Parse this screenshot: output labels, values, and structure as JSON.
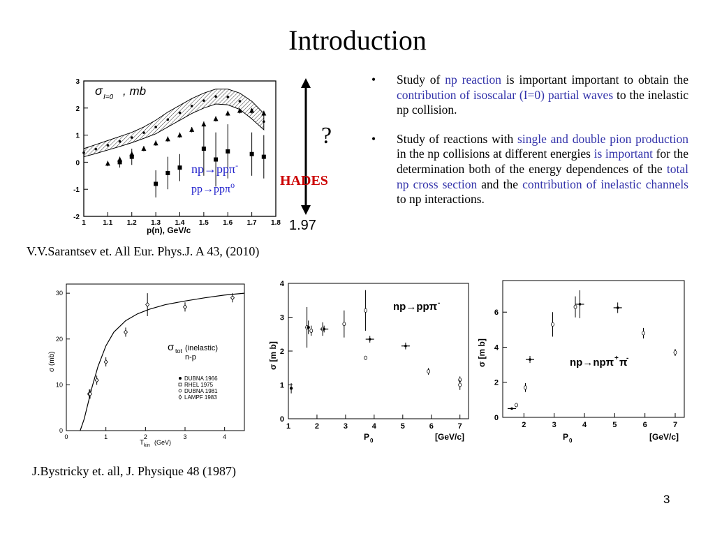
{
  "slide": {
    "title": "Introduction",
    "page_number": "3",
    "refs": {
      "sarantsev": "V.V.Sarantsev et. All Eur. Phys.J. A 43, (2010)",
      "bystricky": "J.Bystricky et. all, J. Physique 48 (1987)"
    },
    "highlight_color": "#3333aa",
    "hades_color": "#cc0000"
  },
  "bullets": [
    {
      "marker": "•",
      "parts": [
        {
          "t": "Study of ",
          "hl": false
        },
        {
          "t": "np reaction",
          "hl": true
        },
        {
          "t": " is important important to obtain the ",
          "hl": false
        },
        {
          "t": "contribution of isoscalar (I=0) partial waves",
          "hl": true
        },
        {
          "t": " to the inelastic np collision.",
          "hl": false
        }
      ]
    },
    {
      "marker": "•",
      "parts": [
        {
          "t": "Study of reactions with ",
          "hl": false
        },
        {
          "t": "single and double pion production",
          "hl": true
        },
        {
          "t": " in the np collisions at different energies ",
          "hl": false
        },
        {
          "t": "is important",
          "hl": true
        },
        {
          "t": " for the determination both of the energy dependences of the ",
          "hl": false
        },
        {
          "t": "total np cross section",
          "hl": true
        },
        {
          "t": " and the ",
          "hl": false
        },
        {
          "t": "contribution of inelastic channels",
          "hl": true
        },
        {
          "t": " to np interactions.",
          "hl": false
        }
      ]
    }
  ],
  "annotations": {
    "question": "?",
    "hades": "HADES",
    "energy_mark": "1.97"
  },
  "chart_data": [
    {
      "type": "scatter",
      "id": "sigma_I0",
      "title_main": "σ",
      "title_sub": "I=0",
      "title_unit": ", mb",
      "xlabel": "p(n), GeV/c",
      "ylabel": "",
      "xlim": [
        1.0,
        1.8
      ],
      "ylim": [
        -2,
        3
      ],
      "xticks": [
        "1",
        "1.1",
        "1.2",
        "1.3",
        "1.4",
        "1.5",
        "1.6",
        "1.7",
        "1.8"
      ],
      "yticks": [
        "-2",
        "-1",
        "0",
        "1",
        "2",
        "3"
      ],
      "legend": [
        "np→ppπ-",
        "pp→ppπ0"
      ],
      "band": {
        "x": [
          1.0,
          1.05,
          1.1,
          1.15,
          1.2,
          1.25,
          1.3,
          1.35,
          1.4,
          1.45,
          1.5,
          1.55,
          1.6,
          1.65,
          1.7,
          1.75
        ],
        "upper": [
          0.5,
          0.65,
          0.8,
          0.95,
          1.1,
          1.3,
          1.55,
          1.85,
          2.1,
          2.35,
          2.55,
          2.7,
          2.7,
          2.55,
          2.25,
          1.8
        ],
        "lower": [
          0.2,
          0.32,
          0.45,
          0.58,
          0.72,
          0.88,
          1.05,
          1.3,
          1.55,
          1.8,
          2.0,
          2.15,
          2.12,
          1.95,
          1.6,
          1.2
        ]
      },
      "series": [
        {
          "name": "np→ppπ-",
          "marker": "square",
          "x": [
            1.15,
            1.2,
            1.3,
            1.35,
            1.4,
            1.5,
            1.55,
            1.6,
            1.7,
            1.75
          ],
          "y": [
            0.0,
            0.2,
            -0.8,
            -0.4,
            -0.2,
            0.5,
            0.1,
            0.4,
            0.3,
            0.2
          ],
          "err": [
            0.2,
            0.3,
            0.5,
            0.6,
            0.5,
            1.0,
            1.0,
            1.0,
            0.8,
            0.8
          ]
        },
        {
          "name": "pp→ppπ0",
          "marker": "triangle",
          "x": [
            1.1,
            1.15,
            1.2,
            1.25,
            1.3,
            1.35,
            1.4,
            1.45,
            1.5,
            1.55,
            1.6,
            1.65,
            1.7,
            1.75
          ],
          "y": [
            -0.05,
            0.1,
            0.3,
            0.5,
            0.7,
            0.85,
            1.0,
            1.2,
            1.4,
            1.6,
            1.8,
            1.9,
            1.9,
            1.8
          ],
          "err": [
            0.1,
            0.1,
            0.1,
            0.1,
            0.1,
            0.1,
            0.1,
            0.1,
            0.1,
            0.1,
            0.1,
            0.1,
            0.1,
            0.1
          ]
        }
      ]
    },
    {
      "type": "scatter",
      "id": "bystricky",
      "title_main": "σ",
      "title_sub": "tot",
      "title_rest": "(inelastic)",
      "title_line2": "n-p",
      "xlabel": "T",
      "xlabel_sub": "kin",
      "xlabel_unit": "(GeV)",
      "ylabel": "σ (mb)",
      "xlim": [
        0,
        4.5
      ],
      "ylim": [
        0,
        32
      ],
      "xticks": [
        "0",
        "1",
        "2",
        "3",
        "4"
      ],
      "yticks": [
        "0",
        "10",
        "20",
        "30"
      ],
      "legend": [
        {
          "marker": "filled-circle",
          "label": "DUBNA 1966"
        },
        {
          "marker": "open-square",
          "label": "RHEL 1975"
        },
        {
          "marker": "open-circle",
          "label": "DUBNA 1981"
        },
        {
          "marker": "open-diamond",
          "label": "LAMPF 1983"
        }
      ],
      "curve": {
        "x": [
          0.35,
          0.45,
          0.55,
          0.65,
          0.8,
          1.0,
          1.2,
          1.5,
          1.8,
          2.1,
          2.5,
          3.0,
          3.5,
          4.0,
          4.5
        ],
        "y": [
          0.0,
          2.5,
          6.0,
          9.5,
          14.0,
          18.5,
          21.5,
          24.0,
          25.5,
          26.5,
          27.5,
          28.3,
          29.0,
          29.6,
          30.0
        ]
      },
      "points": {
        "x": [
          0.58,
          0.6,
          0.77,
          1.0,
          1.5,
          2.05,
          3.0,
          4.2
        ],
        "y": [
          8.0,
          8.0,
          11.0,
          15.0,
          21.5,
          27.5,
          27.0,
          29.0
        ],
        "err": [
          1.0,
          1.0,
          1.0,
          1.0,
          1.0,
          2.5,
          1.0,
          1.0
        ]
      }
    },
    {
      "type": "scatter",
      "id": "np_pppim",
      "label": "np→ppπ",
      "label_sup": "-",
      "xlabel": "P",
      "xlabel_sub": "0",
      "xlabel_unit": "[GeV/c]",
      "ylabel": "σ [m b]",
      "xlim": [
        1,
        7.3
      ],
      "ylim": [
        0,
        4
      ],
      "xticks": [
        "1",
        "2",
        "3",
        "4",
        "5",
        "6",
        "7"
      ],
      "yticks": [
        "0",
        "1",
        "2",
        "3",
        "4"
      ],
      "points": [
        {
          "x": 1.1,
          "y": 0.9,
          "err": 0.15,
          "m": "filled"
        },
        {
          "x": 1.65,
          "y": 2.7,
          "err": 0.6,
          "m": "open"
        },
        {
          "x": 1.7,
          "y": 2.7,
          "err": 0.2,
          "m": "filled"
        },
        {
          "x": 1.8,
          "y": 2.6,
          "err": 0.15,
          "m": "open"
        },
        {
          "x": 2.2,
          "y": 2.65,
          "err": 0.2,
          "m": "open"
        },
        {
          "x": 2.25,
          "y": 2.65,
          "err": 0.1,
          "m": "cross"
        },
        {
          "x": 2.95,
          "y": 2.8,
          "err": 0.4,
          "m": "open"
        },
        {
          "x": 3.7,
          "y": 3.2,
          "err": 0.6,
          "m": "open"
        },
        {
          "x": 3.7,
          "y": 1.8,
          "err": 0.0,
          "m": "open"
        },
        {
          "x": 3.85,
          "y": 2.35,
          "err": 0.1,
          "m": "cross"
        },
        {
          "x": 5.1,
          "y": 2.15,
          "err": 0.1,
          "m": "cross"
        },
        {
          "x": 5.9,
          "y": 1.4,
          "err": 0.1,
          "m": "open"
        },
        {
          "x": 7.0,
          "y": 1.15,
          "err": 0.1,
          "m": "open"
        },
        {
          "x": 7.0,
          "y": 1.0,
          "err": 0.15,
          "m": "open"
        }
      ]
    },
    {
      "type": "scatter",
      "id": "np_nppippim",
      "label": "np→npπ",
      "label_sup1": "+",
      "label_mid": "π",
      "label_sup2": "-",
      "xlabel": "P",
      "xlabel_sub": "0",
      "xlabel_unit": "[GeV/c]",
      "ylabel": "σ [m b]",
      "xlim": [
        1.3,
        7.3
      ],
      "ylim": [
        0,
        7.8
      ],
      "xticks": [
        "2",
        "3",
        "4",
        "5",
        "6",
        "7"
      ],
      "yticks": [
        "0",
        "2",
        "4",
        "6"
      ],
      "points": [
        {
          "x": 1.6,
          "y": 0.5,
          "err": 0.0,
          "m": "cross"
        },
        {
          "x": 1.75,
          "y": 0.7,
          "err": 0.0,
          "m": "open"
        },
        {
          "x": 2.05,
          "y": 1.7,
          "err": 0.25,
          "m": "open"
        },
        {
          "x": 2.2,
          "y": 3.3,
          "err": 0.2,
          "m": "cross"
        },
        {
          "x": 2.95,
          "y": 5.3,
          "err": 0.7,
          "m": "open"
        },
        {
          "x": 3.7,
          "y": 6.3,
          "err": 0.6,
          "m": "open"
        },
        {
          "x": 3.85,
          "y": 6.45,
          "err": 0.8,
          "m": "cross"
        },
        {
          "x": 5.1,
          "y": 6.25,
          "err": 0.3,
          "m": "cross"
        },
        {
          "x": 5.95,
          "y": 4.8,
          "err": 0.3,
          "m": "open"
        },
        {
          "x": 7.0,
          "y": 3.7,
          "err": 0.2,
          "m": "open"
        }
      ]
    }
  ]
}
